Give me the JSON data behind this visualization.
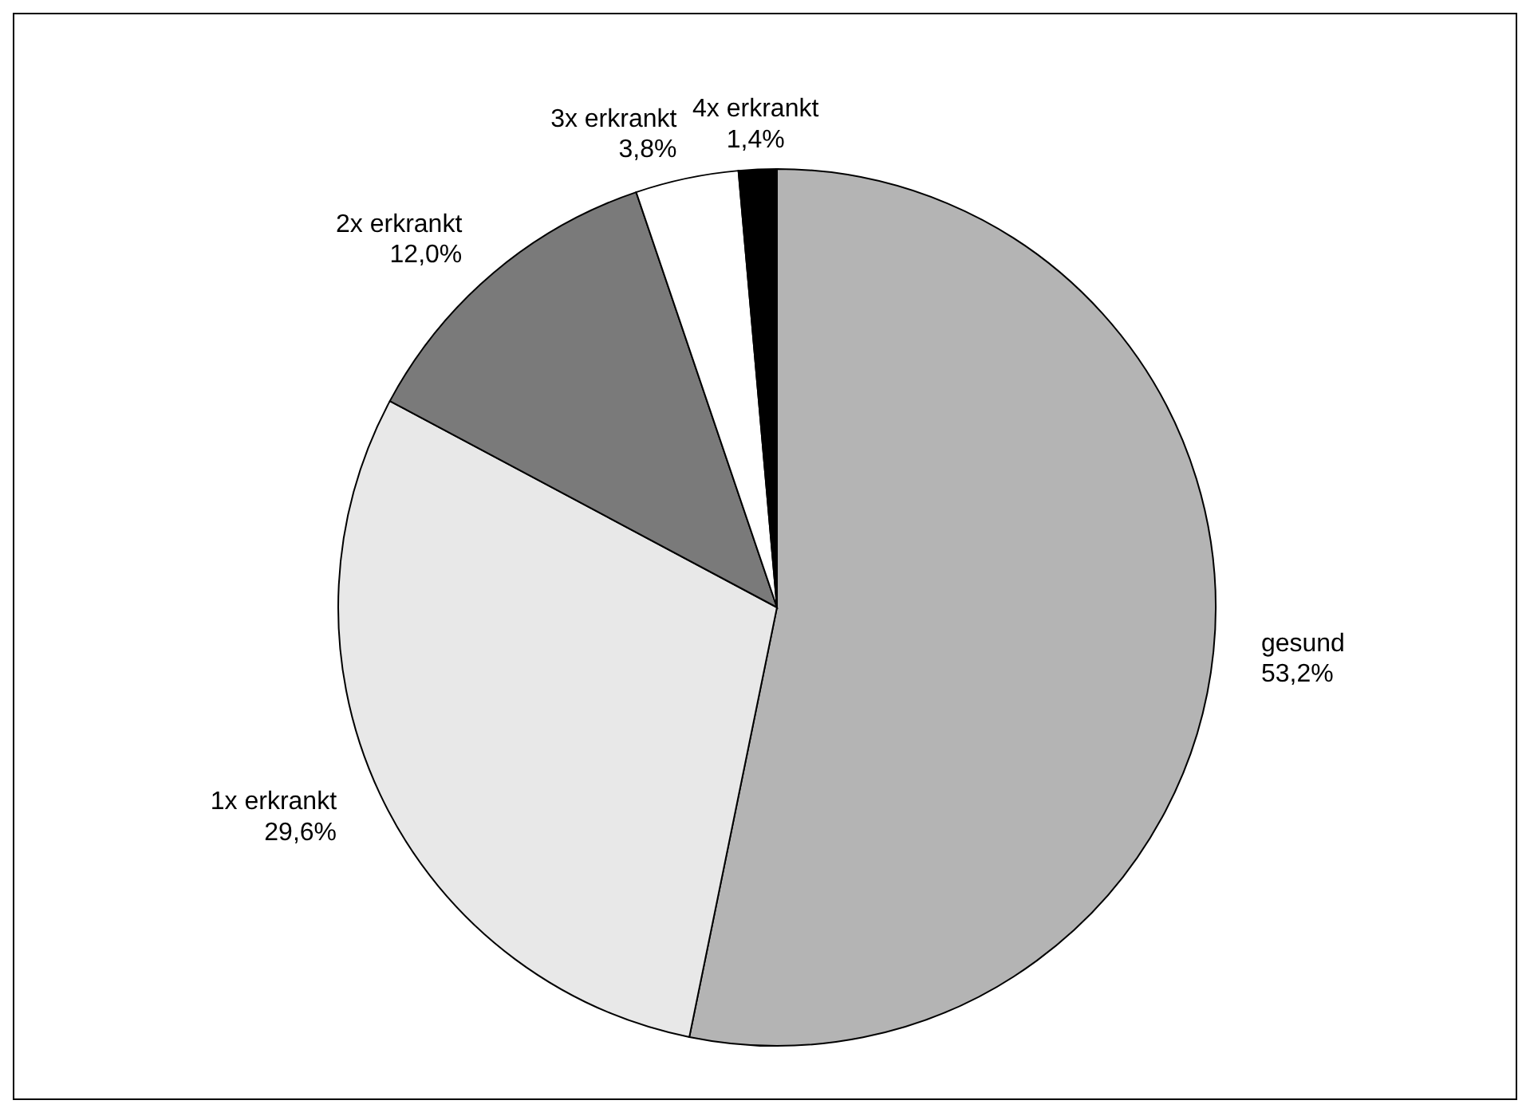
{
  "chart_data": {
    "type": "pie",
    "categories": [
      "gesund",
      "1x erkrankt",
      "2x erkrankt",
      "3x erkrankt",
      "4x erkrankt"
    ],
    "values": [
      53.2,
      29.6,
      12.0,
      3.8,
      1.4
    ],
    "value_labels": [
      "53,2%",
      "29,6%",
      "12,0%",
      "3,8%",
      "1,4%"
    ],
    "colors": [
      "#b4b4b4",
      "#e8e8e8",
      "#7a7a7a",
      "#ffffff",
      "#000000"
    ],
    "legend": false
  }
}
